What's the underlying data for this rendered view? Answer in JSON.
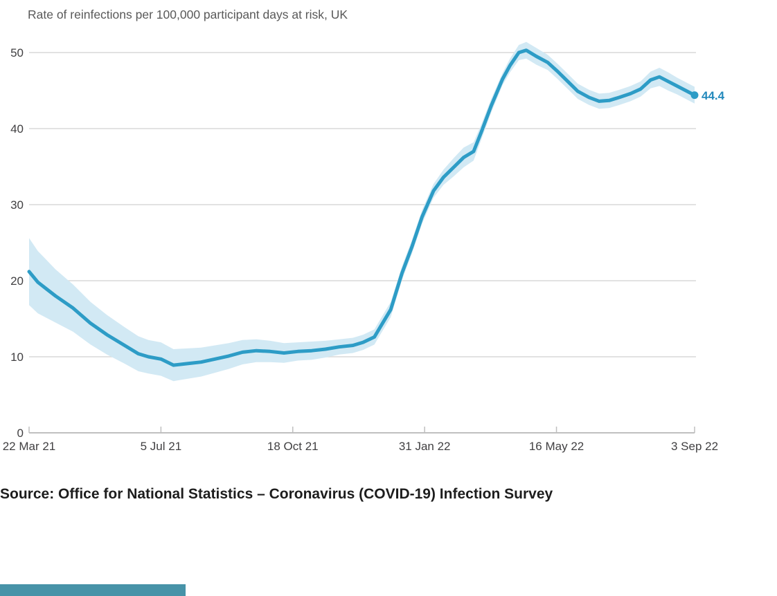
{
  "page": {
    "title": "Rate of reinfections per 100,000 participant days at risk, UK",
    "source": "Source: Office for National Statistics – Coronavirus (COVID-19) Infection Survey"
  },
  "colors": {
    "line": "#2D9CC6",
    "band": "#D2E9F4",
    "end_label_text": "#2389BC",
    "grid": "#D8D8D8",
    "axis": "#BFBFBF",
    "tick_text": "#414042",
    "title_text": "#595959",
    "source_text": "#1d1d1d",
    "accent_bar": "#4793A8"
  },
  "chart_data": {
    "type": "line",
    "title": "Rate of reinfections per 100,000 participant days at risk, UK",
    "xlabel": "",
    "ylabel": "Rate of reinfections per 100,000 participant days at risk",
    "ylim": [
      0,
      50
    ],
    "grid": "horizontal",
    "legend": "none",
    "y_ticks": [
      0,
      10,
      20,
      30,
      40,
      50
    ],
    "x_ticks": [
      {
        "label": "22 Mar 21",
        "day": 0
      },
      {
        "label": "5 Jul 21",
        "day": 105
      },
      {
        "label": "18 Oct 21",
        "day": 210
      },
      {
        "label": "31 Jan 22",
        "day": 315
      },
      {
        "label": "16 May 22",
        "day": 420
      },
      {
        "label": "3 Sep 22",
        "day": 530
      }
    ],
    "x_span_days": 530,
    "x_range": [
      "22 Mar 21",
      "3 Sep 22"
    ],
    "end_label": "44.4",
    "band_meaning": "confidence interval shading around the central estimate",
    "series": [
      {
        "name": "Reinfection rate (central estimate)",
        "point_format": [
          "day_offset_from_22_Mar_21",
          "value",
          "ci_halfwidth"
        ],
        "last_value": 44.4,
        "points": [
          [
            0,
            21.2,
            4.4
          ],
          [
            7,
            19.8,
            4.1
          ],
          [
            14,
            18.9,
            3.8
          ],
          [
            21,
            18.0,
            3.5
          ],
          [
            35,
            16.4,
            3.1
          ],
          [
            49,
            14.4,
            2.8
          ],
          [
            62,
            12.9,
            2.6
          ],
          [
            76,
            11.5,
            2.4
          ],
          [
            87,
            10.4,
            2.3
          ],
          [
            95,
            10.0,
            2.2
          ],
          [
            105,
            9.7,
            2.2
          ],
          [
            115,
            8.9,
            2.1
          ],
          [
            126,
            9.1,
            2.0
          ],
          [
            137,
            9.3,
            1.9
          ],
          [
            148,
            9.7,
            1.8
          ],
          [
            159,
            10.1,
            1.7
          ],
          [
            170,
            10.6,
            1.6
          ],
          [
            181,
            10.8,
            1.5
          ],
          [
            192,
            10.7,
            1.4
          ],
          [
            203,
            10.5,
            1.3
          ],
          [
            214,
            10.7,
            1.2
          ],
          [
            225,
            10.8,
            1.2
          ],
          [
            236,
            11.0,
            1.1
          ],
          [
            247,
            11.3,
            1.0
          ],
          [
            258,
            11.5,
            1.0
          ],
          [
            266,
            11.9,
            1.0
          ],
          [
            275,
            12.6,
            1.0
          ],
          [
            280,
            14.0,
            1.0
          ],
          [
            288,
            16.2,
            1.0
          ],
          [
            297,
            21.0,
            0.9
          ],
          [
            305,
            24.5,
            0.9
          ],
          [
            313,
            28.4,
            0.9
          ],
          [
            322,
            31.8,
            0.9
          ],
          [
            330,
            33.6,
            1.0
          ],
          [
            338,
            34.9,
            1.2
          ],
          [
            346,
            36.2,
            1.3
          ],
          [
            354,
            37.0,
            1.2
          ],
          [
            360,
            39.5,
            1.0
          ],
          [
            368,
            43.0,
            0.9
          ],
          [
            377,
            46.5,
            0.8
          ],
          [
            383,
            48.3,
            0.9
          ],
          [
            390,
            50.0,
            1.0
          ],
          [
            396,
            50.3,
            1.1
          ],
          [
            404,
            49.5,
            1.1
          ],
          [
            413,
            48.7,
            1.0
          ],
          [
            421,
            47.5,
            1.0
          ],
          [
            429,
            46.2,
            1.0
          ],
          [
            437,
            44.9,
            1.0
          ],
          [
            446,
            44.1,
            1.0
          ],
          [
            454,
            43.6,
            1.0
          ],
          [
            462,
            43.7,
            1.0
          ],
          [
            470,
            44.1,
            1.0
          ],
          [
            479,
            44.6,
            1.0
          ],
          [
            487,
            45.2,
            1.0
          ],
          [
            495,
            46.4,
            1.1
          ],
          [
            502,
            46.8,
            1.2
          ],
          [
            509,
            46.2,
            1.2
          ],
          [
            516,
            45.6,
            1.1
          ],
          [
            523,
            45.0,
            1.1
          ],
          [
            530,
            44.4,
            1.1
          ]
        ]
      }
    ]
  }
}
